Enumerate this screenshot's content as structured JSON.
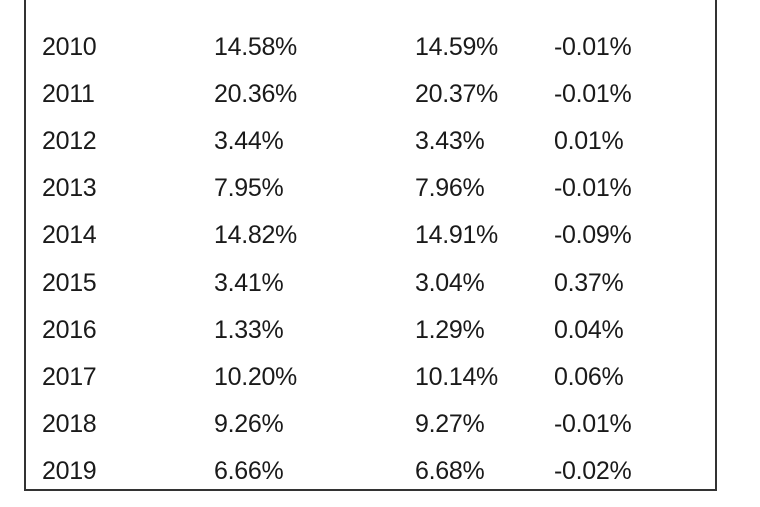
{
  "table": {
    "rows": [
      [
        "2010",
        "14.58%",
        "14.59%",
        "-0.01%"
      ],
      [
        "2011",
        "20.36%",
        "20.37%",
        "-0.01%"
      ],
      [
        "2012",
        "3.44%",
        "3.43%",
        "0.01%"
      ],
      [
        "2013",
        "7.95%",
        "7.96%",
        "-0.01%"
      ],
      [
        "2014",
        "14.82%",
        "14.91%",
        "-0.09%"
      ],
      [
        "2015",
        "3.41%",
        "3.04%",
        "0.37%"
      ],
      [
        "2016",
        "1.33%",
        "1.29%",
        "0.04%"
      ],
      [
        "2017",
        "10.20%",
        "10.14%",
        "0.06%"
      ],
      [
        "2018",
        "9.26%",
        "9.27%",
        "-0.01%"
      ],
      [
        "2019",
        "6.66%",
        "6.68%",
        "-0.02%"
      ]
    ]
  }
}
